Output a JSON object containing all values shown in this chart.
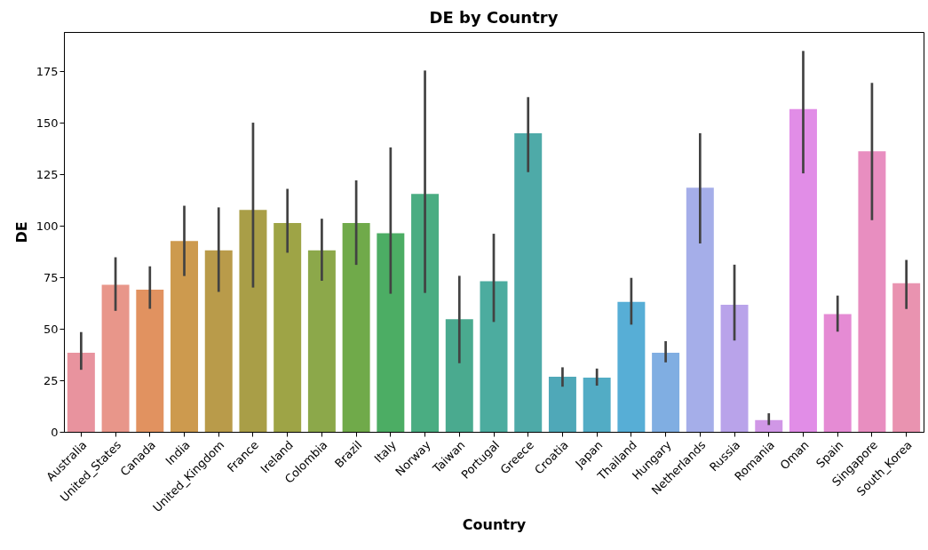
{
  "chart_data": {
    "type": "bar",
    "title": "DE by Country",
    "xlabel": "Country",
    "ylabel": "DE",
    "categories": [
      "Australia",
      "United_States",
      "Canada",
      "India",
      "United_Kingdom",
      "France",
      "Ireland",
      "Colombia",
      "Brazil",
      "Italy",
      "Norway",
      "Taiwan",
      "Portugal",
      "Greece",
      "Croatia",
      "Japan",
      "Thailand",
      "Hungary",
      "Netherlands",
      "Russia",
      "Romania",
      "Oman",
      "Spain",
      "Singapore",
      "South_Korea"
    ],
    "values": [
      38.4,
      71.3,
      69.0,
      92.6,
      88.1,
      107.7,
      101.3,
      88.1,
      101.3,
      96.3,
      115.4,
      54.6,
      73.1,
      144.9,
      26.7,
      26.3,
      63.1,
      38.4,
      118.4,
      61.7,
      5.7,
      156.6,
      57.1,
      136.1,
      72.1
    ],
    "errors": [
      [
        30.1,
        48.4
      ],
      [
        58.7,
        84.7
      ],
      [
        59.7,
        80.3
      ],
      [
        75.6,
        109.7
      ],
      [
        67.9,
        108.9
      ],
      [
        70,
        150
      ],
      [
        86.9,
        117.9
      ],
      [
        73.3,
        103.4
      ],
      [
        81,
        122
      ],
      [
        67,
        138
      ],
      [
        67.4,
        175.3
      ],
      [
        33.3,
        75.7
      ],
      [
        53.3,
        96.1
      ],
      [
        126,
        162.4
      ],
      [
        21.9,
        31.3
      ],
      [
        22.4,
        30.7
      ],
      [
        52,
        74.7
      ],
      [
        33.7,
        44
      ],
      [
        91.4,
        144.9
      ],
      [
        44.3,
        81.1
      ],
      [
        3.3,
        9
      ],
      [
        125.4,
        184.8
      ],
      [
        48.6,
        66.1
      ],
      [
        102.7,
        169.3
      ],
      [
        59.6,
        83.4
      ]
    ],
    "colors": [
      "#e8939e",
      "#e8968a",
      "#e19260",
      "#cd9a4e",
      "#b99b4a",
      "#a99e47",
      "#9ea446",
      "#8ca84a",
      "#70aa4a",
      "#4cad64",
      "#4aad82",
      "#4aaa8f",
      "#4cac9f",
      "#4eaaa8",
      "#4fa8b8",
      "#52acc5",
      "#57aed6",
      "#80aee2",
      "#a5aee9",
      "#b9a3ea",
      "#d097e6",
      "#e18de7",
      "#e58bd4",
      "#e88ec0",
      "#e993b0"
    ],
    "ylim": [
      0,
      194
    ],
    "yticks": [
      0,
      25,
      50,
      75,
      100,
      125,
      150,
      175
    ]
  }
}
